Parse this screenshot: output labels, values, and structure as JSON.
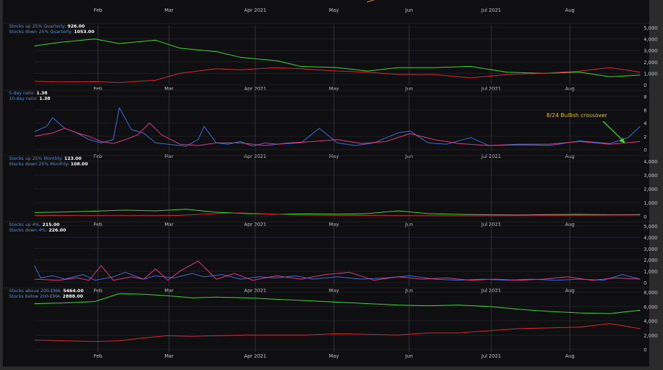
{
  "colors": {
    "background": "#0f0f11",
    "grid": "#2a2d33",
    "vgrid": "#3a3d44",
    "green": "#38e02a",
    "red": "#e0243a",
    "blue": "#3d6fe0",
    "pink": "#e03a86",
    "label_key": "#5b8fd8",
    "label_value": "#ffffff",
    "tick_text": "#c8c8c8",
    "annotation": "#e8c020",
    "arrow": "#39e030"
  },
  "months": [
    "Feb",
    "Mar",
    "Apr 2021",
    "May",
    "Jun",
    "Jul 2021",
    "Aug"
  ],
  "chart_data": [
    {
      "type": "line",
      "y_ticks": [
        "5,000",
        "4,000",
        "3,000",
        "2,000",
        "1,000",
        "0"
      ],
      "ylim": [
        0,
        5000
      ],
      "legend": [
        {
          "key": "Stocks up 25% Quarterly:",
          "value": "926.00"
        },
        {
          "key": "Stocks down 25% Quarterly:",
          "value": "1053.00"
        }
      ],
      "series": [
        {
          "color": "green",
          "x": [
            0,
            0.04,
            0.1,
            0.14,
            0.2,
            0.24,
            0.3,
            0.34,
            0.4,
            0.44,
            0.5,
            0.55,
            0.6,
            0.66,
            0.72,
            0.78,
            0.84,
            0.9,
            0.95,
            1
          ],
          "values": [
            3400,
            3700,
            4000,
            3600,
            3900,
            3200,
            2900,
            2400,
            2100,
            1600,
            1500,
            1200,
            1500,
            1500,
            1600,
            1100,
            1000,
            1100,
            700,
            850
          ]
        },
        {
          "color": "red",
          "x": [
            0,
            0.04,
            0.1,
            0.14,
            0.2,
            0.24,
            0.3,
            0.34,
            0.4,
            0.44,
            0.5,
            0.55,
            0.6,
            0.66,
            0.72,
            0.78,
            0.84,
            0.9,
            0.95,
            1
          ],
          "values": [
            300,
            250,
            280,
            200,
            400,
            1000,
            1400,
            1300,
            1500,
            1400,
            1200,
            1100,
            900,
            900,
            600,
            900,
            1000,
            1200,
            1500,
            1100
          ]
        }
      ]
    },
    {
      "type": "line",
      "y_ticks": [
        "8",
        "6",
        "4",
        "2",
        "0"
      ],
      "ylim": [
        0,
        8
      ],
      "legend": [
        {
          "key": "5-day ratio:",
          "value": "1.38"
        },
        {
          "key": "10-day ratio:",
          "value": "1.38"
        }
      ],
      "annotation": "8/24 Bullish crossover",
      "series": [
        {
          "color": "blue",
          "x": [
            0,
            0.02,
            0.03,
            0.05,
            0.07,
            0.09,
            0.11,
            0.13,
            0.14,
            0.16,
            0.18,
            0.2,
            0.22,
            0.25,
            0.27,
            0.28,
            0.3,
            0.32,
            0.34,
            0.36,
            0.38,
            0.4,
            0.44,
            0.47,
            0.5,
            0.53,
            0.56,
            0.6,
            0.62,
            0.65,
            0.68,
            0.72,
            0.75,
            0.8,
            0.85,
            0.9,
            0.95,
            0.98,
            1
          ],
          "values": [
            2.7,
            3.5,
            4.8,
            3.2,
            2.5,
            1.5,
            1.0,
            1.5,
            6.3,
            3.0,
            2.5,
            1.0,
            0.8,
            0.5,
            1.5,
            3.5,
            1.0,
            0.8,
            1.2,
            0.5,
            1.0,
            0.8,
            1.0,
            3.2,
            1.0,
            0.6,
            1.0,
            2.5,
            2.8,
            1.0,
            0.8,
            1.8,
            0.6,
            0.7,
            0.6,
            1.3,
            0.9,
            1.8,
            3.5
          ]
        },
        {
          "color": "pink",
          "x": [
            0,
            0.03,
            0.05,
            0.07,
            0.09,
            0.11,
            0.13,
            0.15,
            0.17,
            0.19,
            0.21,
            0.24,
            0.27,
            0.3,
            0.34,
            0.38,
            0.42,
            0.46,
            0.5,
            0.54,
            0.58,
            0.62,
            0.66,
            0.7,
            0.75,
            0.8,
            0.85,
            0.9,
            0.95,
            1
          ],
          "values": [
            2.0,
            2.5,
            3.2,
            2.5,
            2.0,
            1.2,
            0.9,
            1.5,
            2.2,
            4.0,
            2.2,
            0.8,
            0.6,
            1.0,
            1.0,
            0.6,
            1.0,
            1.2,
            1.5,
            0.9,
            1.2,
            2.4,
            1.5,
            0.9,
            0.6,
            0.8,
            0.8,
            1.2,
            0.8,
            1.2
          ]
        }
      ]
    },
    {
      "type": "line",
      "y_ticks": [
        "4,000",
        "3,000",
        "2,000",
        "1,000",
        "0"
      ],
      "ylim": [
        0,
        4000
      ],
      "legend": [
        {
          "key": "Stocks up 25% Monthly:",
          "value": "123.00"
        },
        {
          "key": "Stocks down 25% Monthly:",
          "value": "108.00"
        }
      ],
      "series": [
        {
          "color": "green",
          "x": [
            0,
            0.05,
            0.1,
            0.15,
            0.2,
            0.25,
            0.3,
            0.35,
            0.4,
            0.45,
            0.5,
            0.55,
            0.6,
            0.65,
            0.7,
            0.75,
            0.8,
            0.85,
            0.9,
            0.95,
            1
          ],
          "values": [
            280,
            320,
            380,
            450,
            400,
            520,
            300,
            200,
            150,
            180,
            160,
            200,
            400,
            200,
            150,
            120,
            100,
            130,
            150,
            120,
            130
          ]
        },
        {
          "color": "red",
          "x": [
            0,
            0.1,
            0.2,
            0.24,
            0.3,
            0.34,
            0.38,
            0.44,
            0.5,
            0.6,
            0.7,
            0.8,
            0.9,
            1
          ],
          "values": [
            80,
            60,
            60,
            80,
            200,
            250,
            180,
            100,
            80,
            60,
            50,
            60,
            80,
            100
          ]
        }
      ]
    },
    {
      "type": "line",
      "y_ticks": [
        "5,000",
        "4,000",
        "3,000",
        "2,000",
        "1,000",
        "0"
      ],
      "ylim": [
        0,
        5000
      ],
      "legend": [
        {
          "key": "Stocks up 4%:",
          "value": "215.00"
        },
        {
          "key": "Stocks down 4%:",
          "value": "226.00"
        }
      ],
      "series": [
        {
          "color": "blue",
          "x": [
            0,
            0.01,
            0.03,
            0.05,
            0.08,
            0.1,
            0.13,
            0.15,
            0.18,
            0.2,
            0.23,
            0.26,
            0.28,
            0.31,
            0.34,
            0.37,
            0.4,
            0.43,
            0.46,
            0.5,
            0.54,
            0.58,
            0.62,
            0.66,
            0.7,
            0.74,
            0.78,
            0.82,
            0.86,
            0.9,
            0.94,
            0.97,
            1
          ],
          "values": [
            1500,
            400,
            600,
            300,
            700,
            200,
            500,
            900,
            300,
            600,
            400,
            800,
            500,
            700,
            300,
            500,
            400,
            600,
            300,
            500,
            300,
            400,
            600,
            300,
            200,
            300,
            200,
            300,
            200,
            300,
            200,
            700,
            300
          ]
        },
        {
          "color": "pink",
          "x": [
            0,
            0.04,
            0.07,
            0.09,
            0.11,
            0.13,
            0.16,
            0.18,
            0.2,
            0.22,
            0.24,
            0.27,
            0.3,
            0.33,
            0.36,
            0.4,
            0.44,
            0.48,
            0.52,
            0.56,
            0.6,
            0.64,
            0.68,
            0.72,
            0.76,
            0.8,
            0.84,
            0.88,
            0.92,
            0.96,
            1
          ],
          "values": [
            300,
            200,
            400,
            200,
            1500,
            200,
            500,
            300,
            1200,
            200,
            1000,
            1900,
            300,
            800,
            200,
            600,
            300,
            700,
            900,
            200,
            500,
            300,
            400,
            200,
            300,
            200,
            300,
            500,
            200,
            400,
            300
          ]
        }
      ]
    },
    {
      "type": "line",
      "y_ticks": [
        "8,000",
        "6,000",
        "4,000",
        "2,000",
        "0"
      ],
      "ylim": [
        0,
        8000
      ],
      "legend": [
        {
          "key": "Stocks above 200-EMA:",
          "value": "5464.00"
        },
        {
          "key": "Stocks below 200-EMA:",
          "value": "2888.00"
        }
      ],
      "series": [
        {
          "color": "green",
          "x": [
            0,
            0.05,
            0.1,
            0.14,
            0.18,
            0.22,
            0.26,
            0.3,
            0.35,
            0.4,
            0.45,
            0.5,
            0.55,
            0.6,
            0.65,
            0.7,
            0.75,
            0.8,
            0.85,
            0.9,
            0.95,
            1
          ],
          "values": [
            6400,
            6500,
            6700,
            7800,
            7700,
            7500,
            7200,
            7300,
            7200,
            7000,
            6800,
            6600,
            6400,
            6200,
            6100,
            6200,
            6000,
            5600,
            5300,
            5100,
            5000,
            5464
          ]
        },
        {
          "color": "red",
          "x": [
            0,
            0.05,
            0.1,
            0.14,
            0.18,
            0.22,
            0.26,
            0.3,
            0.35,
            0.4,
            0.45,
            0.5,
            0.55,
            0.6,
            0.65,
            0.7,
            0.75,
            0.8,
            0.85,
            0.9,
            0.95,
            1
          ],
          "values": [
            1300,
            1200,
            1100,
            1200,
            1600,
            1900,
            1800,
            1900,
            2000,
            2000,
            2000,
            2200,
            2100,
            2000,
            2300,
            2300,
            2600,
            2900,
            3000,
            3100,
            3600,
            2888
          ]
        }
      ]
    }
  ]
}
